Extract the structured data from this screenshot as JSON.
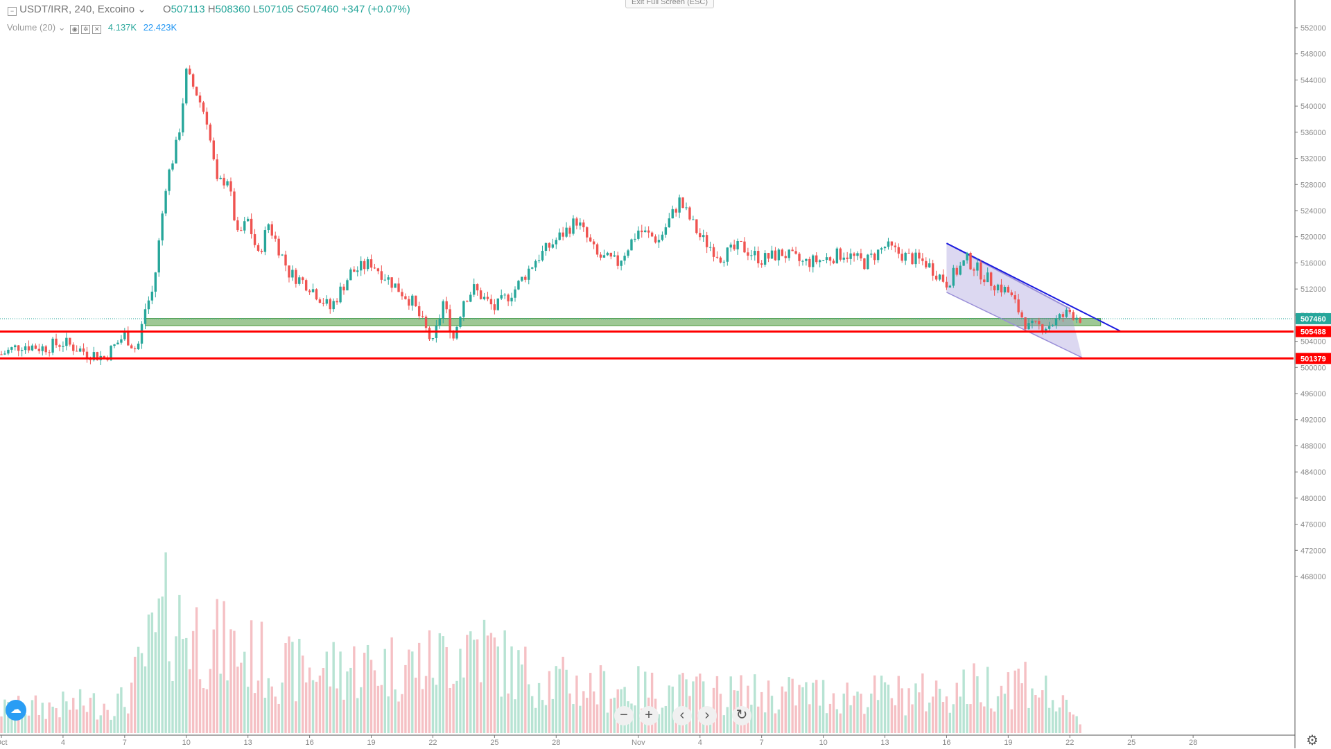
{
  "legend": {
    "symbol": "USDT/IRR, 240, Excoino",
    "o_label": "O",
    "o": "507113",
    "h_label": "H",
    "h": "508360",
    "l_label": "L",
    "l": "507105",
    "c_label": "C",
    "c": "507460",
    "change": "+347 (+0.07%)",
    "volume_label": "Volume (20)",
    "volume_value": "4.137K",
    "volume_ma": "22.423K"
  },
  "exit_fullscreen": "Exit Full Screen (ESC)",
  "controls": {
    "zoom_out": "−",
    "zoom_in": "+",
    "left": "‹",
    "right": "›",
    "reset": "↻"
  },
  "icons": {
    "logo": "tradingview-logo-icon",
    "settings": "gear-icon",
    "collapse": "minus-square-icon"
  },
  "colors": {
    "up": "#26a69a",
    "down": "#ef5350",
    "up_vol": "#b7e3d3",
    "down_vol": "#f5c0c4",
    "support": "#ff0000",
    "zone": "#4e9a3e",
    "channel": "#9a8fd8",
    "trendline": "#1a1adf"
  },
  "chart_data": {
    "type": "candlestick",
    "timeframe": "240",
    "y_axis_ticks": [
      552000,
      548000,
      544000,
      540000,
      536000,
      532000,
      528000,
      524000,
      520000,
      516000,
      512000,
      508000,
      504000,
      500000,
      496000,
      492000,
      488000,
      484000,
      480000,
      476000,
      472000,
      468000
    ],
    "x_axis_ticks": [
      {
        "label": "Oct",
        "day": 0
      },
      {
        "label": "4",
        "day": 3
      },
      {
        "label": "7",
        "day": 6
      },
      {
        "label": "10",
        "day": 9
      },
      {
        "label": "13",
        "day": 12
      },
      {
        "label": "16",
        "day": 15
      },
      {
        "label": "19",
        "day": 18
      },
      {
        "label": "22",
        "day": 21
      },
      {
        "label": "25",
        "day": 24
      },
      {
        "label": "28",
        "day": 27
      },
      {
        "label": "Nov",
        "day": 31
      },
      {
        "label": "4",
        "day": 34
      },
      {
        "label": "7",
        "day": 37
      },
      {
        "label": "10",
        "day": 40
      },
      {
        "label": "13",
        "day": 43
      },
      {
        "label": "16",
        "day": 46
      },
      {
        "label": "19",
        "day": 49
      },
      {
        "label": "22",
        "day": 52
      },
      {
        "label": "25",
        "day": 55
      },
      {
        "label": "28",
        "day": 58
      }
    ],
    "price_path": [
      {
        "day": 0,
        "price": 502000
      },
      {
        "day": 1,
        "price": 503500
      },
      {
        "day": 2,
        "price": 503000
      },
      {
        "day": 3,
        "price": 503800
      },
      {
        "day": 4,
        "price": 502500
      },
      {
        "day": 5,
        "price": 501500
      },
      {
        "day": 6,
        "price": 505000
      },
      {
        "day": 6.6,
        "price": 502500
      },
      {
        "day": 7,
        "price": 509000
      },
      {
        "day": 7.4,
        "price": 512000
      },
      {
        "day": 8,
        "price": 528000
      },
      {
        "day": 8.6,
        "price": 535000
      },
      {
        "day": 9,
        "price": 545000
      },
      {
        "day": 9.5,
        "price": 542000
      },
      {
        "day": 10,
        "price": 538000
      },
      {
        "day": 10.5,
        "price": 528000
      },
      {
        "day": 11,
        "price": 529000
      },
      {
        "day": 11.5,
        "price": 520000
      },
      {
        "day": 12,
        "price": 522500
      },
      {
        "day": 12.5,
        "price": 517000
      },
      {
        "day": 13,
        "price": 522000
      },
      {
        "day": 14,
        "price": 514500
      },
      {
        "day": 15,
        "price": 512500
      },
      {
        "day": 16,
        "price": 509000
      },
      {
        "day": 17,
        "price": 514500
      },
      {
        "day": 18,
        "price": 516000
      },
      {
        "day": 19,
        "price": 513000
      },
      {
        "day": 20,
        "price": 510000
      },
      {
        "day": 21,
        "price": 503500
      },
      {
        "day": 21.5,
        "price": 510000
      },
      {
        "day": 22,
        "price": 504500
      },
      {
        "day": 22.5,
        "price": 510500
      },
      {
        "day": 23,
        "price": 512000
      },
      {
        "day": 24,
        "price": 509000
      },
      {
        "day": 25,
        "price": 512000
      },
      {
        "day": 26,
        "price": 516500
      },
      {
        "day": 27,
        "price": 519500
      },
      {
        "day": 28,
        "price": 522500
      },
      {
        "day": 29,
        "price": 517000
      },
      {
        "day": 30,
        "price": 516000
      },
      {
        "day": 31,
        "price": 521000
      },
      {
        "day": 32,
        "price": 519500
      },
      {
        "day": 33,
        "price": 525500
      },
      {
        "day": 34,
        "price": 520000
      },
      {
        "day": 35,
        "price": 517000
      },
      {
        "day": 36,
        "price": 518500
      },
      {
        "day": 37,
        "price": 516500
      },
      {
        "day": 38,
        "price": 517500
      },
      {
        "day": 39,
        "price": 516000
      },
      {
        "day": 40,
        "price": 516500
      },
      {
        "day": 41,
        "price": 517500
      },
      {
        "day": 42,
        "price": 516000
      },
      {
        "day": 43,
        "price": 518500
      },
      {
        "day": 44,
        "price": 517000
      },
      {
        "day": 45,
        "price": 516000
      },
      {
        "day": 46,
        "price": 513000
      },
      {
        "day": 47,
        "price": 516500
      },
      {
        "day": 48,
        "price": 513500
      },
      {
        "day": 49,
        "price": 511500
      },
      {
        "day": 50,
        "price": 506000
      },
      {
        "day": 51,
        "price": 506500
      },
      {
        "day": 52,
        "price": 508500
      },
      {
        "day": 52.6,
        "price": 507460
      }
    ],
    "volume_profile": [
      {
        "day": 0,
        "vol": 0.15
      },
      {
        "day": 6,
        "vol": 0.2
      },
      {
        "day": 8,
        "vol": 0.75
      },
      {
        "day": 10,
        "vol": 0.6
      },
      {
        "day": 14,
        "vol": 0.4
      },
      {
        "day": 21,
        "vol": 0.45
      },
      {
        "day": 23,
        "vol": 0.6
      },
      {
        "day": 25,
        "vol": 0.4
      },
      {
        "day": 28,
        "vol": 0.3
      },
      {
        "day": 35,
        "vol": 0.25
      },
      {
        "day": 45,
        "vol": 0.25
      },
      {
        "day": 50,
        "vol": 0.35
      },
      {
        "day": 52.6,
        "vol": 0.05
      }
    ],
    "price_labels": [
      {
        "value": 507460,
        "text": "507460",
        "color": "#26a69a"
      },
      {
        "value": 505488,
        "text": "505488",
        "color": "#ff0000"
      },
      {
        "value": 501379,
        "text": "501379",
        "color": "#ff0000"
      }
    ],
    "support_lines": [
      505488,
      501379
    ],
    "zone": {
      "from_day": 7,
      "to_day": 53.5,
      "low": 506400,
      "high": 507500
    },
    "channel": {
      "upper": [
        {
          "day": 46,
          "price": 519000
        },
        {
          "day": 52,
          "price": 509000
        }
      ],
      "lower": [
        {
          "day": 46,
          "price": 511500
        },
        {
          "day": 52.6,
          "price": 501500
        }
      ]
    },
    "trendline": [
      {
        "day": 46,
        "price": 519000
      },
      {
        "day": 54.5,
        "price": 505488
      }
    ]
  }
}
